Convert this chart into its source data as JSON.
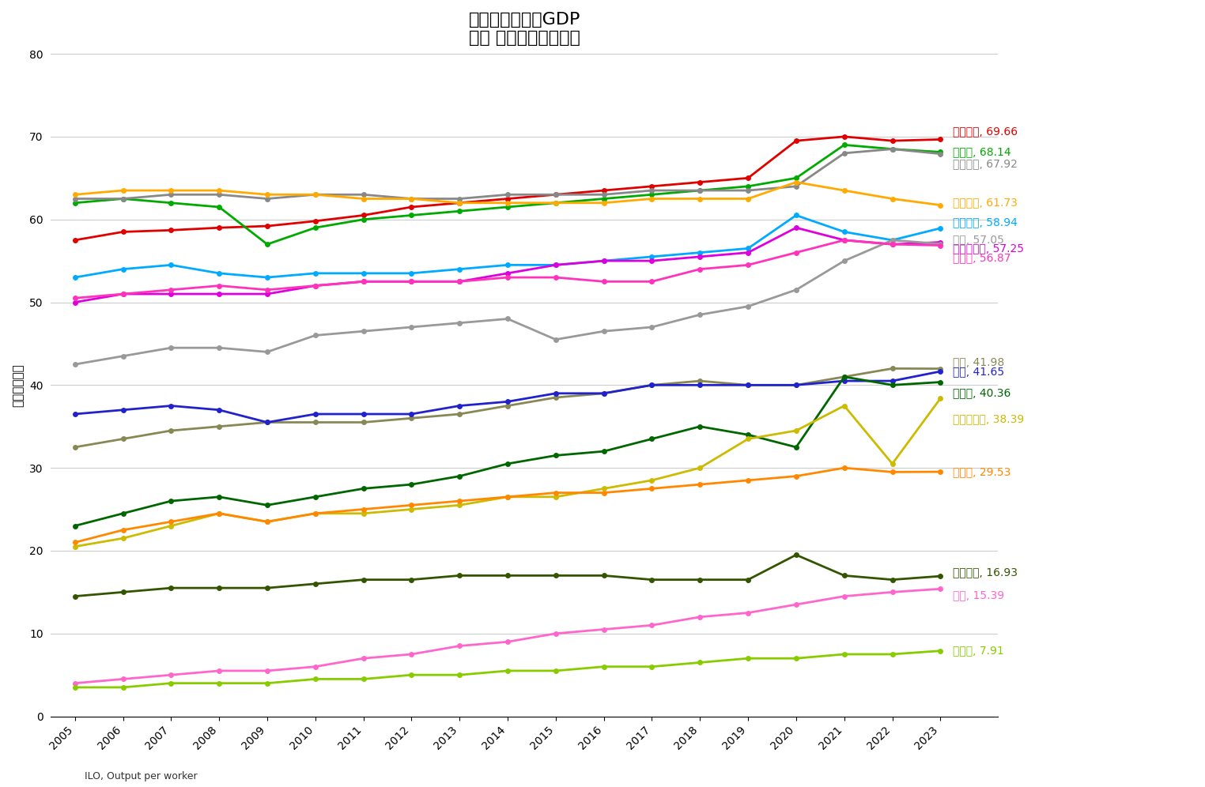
{
  "title_line1": "労働時間あたりGDP",
  "title_line2": "実質 購買力平価換算値",
  "ylabel": "金額［ドル］",
  "xlabel_note": "ILO, Output per worker",
  "years": [
    2005,
    2006,
    2007,
    2008,
    2009,
    2010,
    2011,
    2012,
    2013,
    2014,
    2015,
    2016,
    2017,
    2018,
    2019,
    2020,
    2021,
    2022,
    2023
  ],
  "series": [
    {
      "name": "アメリカ",
      "label": "アメリカ, 69.66",
      "color": "#e00000",
      "values": [
        57.5,
        58.5,
        58.7,
        59.0,
        59.2,
        59.8,
        60.5,
        61.5,
        62.0,
        62.5,
        63.0,
        63.5,
        64.0,
        64.5,
        65.0,
        69.5,
        70.0,
        69.5,
        69.66
      ]
    },
    {
      "name": "ドイツ",
      "label": "ドイツ, 68.14",
      "color": "#00aa00",
      "values": [
        62.0,
        62.5,
        62.0,
        61.5,
        57.0,
        59.0,
        60.0,
        60.5,
        61.0,
        61.5,
        62.0,
        62.5,
        63.0,
        63.5,
        64.0,
        65.0,
        69.0,
        68.5,
        68.14
      ]
    },
    {
      "name": "フランス",
      "label": "フランス, 67.92",
      "color": "#888888",
      "values": [
        62.5,
        62.5,
        63.0,
        63.0,
        62.5,
        63.0,
        63.0,
        62.5,
        62.5,
        63.0,
        63.0,
        63.0,
        63.5,
        63.5,
        63.5,
        64.0,
        68.0,
        68.5,
        67.92
      ]
    },
    {
      "name": "イタリア",
      "label": "イタリア, 61.73",
      "color": "#ffaa00",
      "values": [
        63.0,
        63.5,
        63.5,
        63.5,
        63.0,
        63.0,
        62.5,
        62.5,
        62.0,
        62.0,
        62.0,
        62.0,
        62.5,
        62.5,
        62.5,
        64.5,
        63.5,
        62.5,
        61.73
      ]
    },
    {
      "name": "イギリス",
      "label": "イギリス, 58.94",
      "color": "#00aaff",
      "values": [
        53.0,
        54.0,
        54.5,
        53.5,
        53.0,
        53.5,
        53.5,
        53.5,
        54.0,
        54.5,
        54.5,
        55.0,
        55.5,
        56.0,
        56.5,
        60.5,
        58.5,
        57.5,
        58.94
      ]
    },
    {
      "name": "イスラエル",
      "label": "イスラエル, 57.25",
      "color": "#dd00dd",
      "values": [
        50.0,
        51.0,
        51.0,
        51.0,
        51.0,
        52.0,
        52.5,
        52.5,
        52.5,
        53.5,
        54.5,
        55.0,
        55.0,
        55.5,
        56.0,
        59.0,
        57.5,
        57.0,
        57.25
      ]
    },
    {
      "name": "台湾",
      "label": "台湾, 57.05",
      "color": "#999999",
      "values": [
        42.5,
        43.5,
        44.5,
        44.5,
        44.0,
        46.0,
        46.5,
        47.0,
        47.5,
        48.0,
        45.5,
        46.5,
        47.0,
        48.5,
        49.5,
        51.5,
        55.0,
        57.5,
        57.05
      ]
    },
    {
      "name": "カナダ",
      "label": "カナダ, 56.87",
      "color": "#ff33bb",
      "values": [
        50.5,
        51.0,
        51.5,
        52.0,
        51.5,
        52.0,
        52.5,
        52.5,
        52.5,
        53.0,
        53.0,
        52.5,
        52.5,
        54.0,
        54.5,
        56.0,
        57.5,
        57.0,
        56.87
      ]
    },
    {
      "name": "韓国",
      "label": "韓国, 41.98",
      "color": "#888855",
      "values": [
        32.5,
        33.5,
        34.5,
        35.0,
        35.5,
        35.5,
        35.5,
        36.0,
        36.5,
        37.5,
        38.5,
        39.0,
        40.0,
        40.5,
        40.0,
        40.0,
        41.0,
        42.0,
        41.98
      ]
    },
    {
      "name": "日本",
      "label": "日本, 41.65",
      "color": "#2222cc",
      "values": [
        36.5,
        37.0,
        37.5,
        37.0,
        35.5,
        36.5,
        36.5,
        36.5,
        37.5,
        38.0,
        39.0,
        39.0,
        40.0,
        40.0,
        40.0,
        40.0,
        40.5,
        40.5,
        41.65
      ]
    },
    {
      "name": "トルコ",
      "label": "トルコ, 40.36",
      "color": "#006600",
      "values": [
        23.0,
        24.5,
        26.0,
        26.5,
        25.5,
        26.5,
        27.5,
        28.0,
        29.0,
        30.5,
        31.5,
        32.0,
        33.5,
        35.0,
        34.0,
        32.5,
        41.0,
        40.0,
        40.36
      ]
    },
    {
      "name": "ルーマニア",
      "label": "ルーマニア, 38.39",
      "color": "#ccbb00",
      "values": [
        20.5,
        21.5,
        23.0,
        24.5,
        23.5,
        24.5,
        24.5,
        25.0,
        25.5,
        26.5,
        26.5,
        27.5,
        28.5,
        30.0,
        33.5,
        34.5,
        37.5,
        30.5,
        38.39
      ]
    },
    {
      "name": "ロシア",
      "label": "ロシア, 29.53",
      "color": "#ff8800",
      "values": [
        21.0,
        22.5,
        23.5,
        24.5,
        23.5,
        24.5,
        25.0,
        25.5,
        26.0,
        26.5,
        27.0,
        27.0,
        27.5,
        28.0,
        28.5,
        29.0,
        30.0,
        29.5,
        29.53
      ]
    },
    {
      "name": "ブラジル",
      "label": "ブラジル, 16.93",
      "color": "#335500",
      "values": [
        14.5,
        15.0,
        15.5,
        15.5,
        15.5,
        16.0,
        16.5,
        16.5,
        17.0,
        17.0,
        17.0,
        17.0,
        16.5,
        16.5,
        16.5,
        19.5,
        17.0,
        16.5,
        16.93
      ]
    },
    {
      "name": "中国",
      "label": "中国, 15.39",
      "color": "#ff66cc",
      "values": [
        4.0,
        4.5,
        5.0,
        5.5,
        5.5,
        6.0,
        7.0,
        7.5,
        8.5,
        9.0,
        10.0,
        10.5,
        11.0,
        12.0,
        12.5,
        13.5,
        14.5,
        15.0,
        15.39
      ]
    },
    {
      "name": "インド",
      "label": "インド, 7.91",
      "color": "#88cc00",
      "values": [
        3.5,
        3.5,
        4.0,
        4.0,
        4.0,
        4.5,
        4.5,
        5.0,
        5.0,
        5.5,
        5.5,
        6.0,
        6.0,
        6.5,
        7.0,
        7.0,
        7.5,
        7.5,
        7.91
      ]
    }
  ],
  "ylim": [
    0,
    80
  ],
  "yticks": [
    0,
    10,
    20,
    30,
    40,
    50,
    60,
    70,
    80
  ],
  "background_color": "#ffffff",
  "grid_color": "#cccccc",
  "label_offsets": {
    "アメリカ": 1.0,
    "ドイツ": 0.0,
    "フランス": -1.2,
    "イタリア": 0.3,
    "イギリス": 0.7,
    "イスラエル": -0.7,
    "台湾": 0.5,
    "カナダ": -1.5,
    "韓国": 0.8,
    "日本": 0.0,
    "トルコ": -1.3,
    "ルーマニア": -2.5,
    "ロシア": 0.0,
    "ブラジル": 0.5,
    "中国": -0.8,
    "インド": 0.0
  }
}
